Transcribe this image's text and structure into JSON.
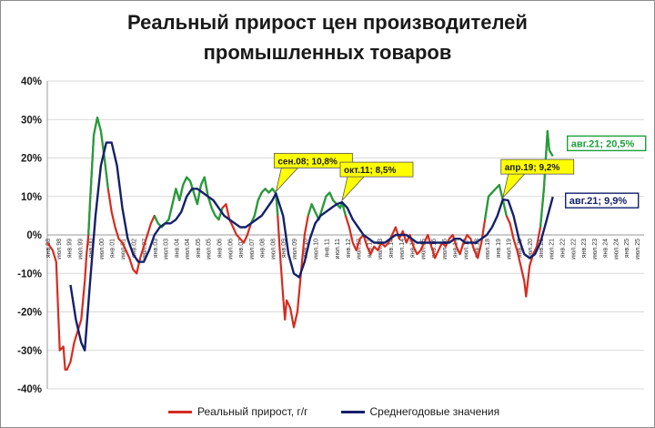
{
  "chart_data": {
    "type": "line",
    "title": "Реальный прирост цен производителей промышленных товаров",
    "title_lines": [
      "Реальный прирост цен производителей",
      "промышленных товаров"
    ],
    "xlabel": "",
    "ylabel": "",
    "ylim": [
      -40,
      40
    ],
    "yticks": [
      -40,
      -30,
      -20,
      -10,
      0,
      10,
      20,
      30,
      40
    ],
    "ytick_labels": [
      "-40%",
      "-30%",
      "-20%",
      "-10%",
      "0%",
      "10%",
      "20%",
      "30%",
      "40%"
    ],
    "grid": true,
    "legend_position": "bottom",
    "x_ticks": [
      "янв.98",
      "июл.98",
      "янв.99",
      "июл.99",
      "янв.00",
      "июл.00",
      "янв.01",
      "июл.01",
      "янв.02",
      "июл.02",
      "янв.03",
      "июл.03",
      "янв.04",
      "июл.04",
      "янв.05",
      "июл.05",
      "янв.06",
      "июл.06",
      "янв.07",
      "июл.07",
      "янв.08",
      "июл.08",
      "янв.09",
      "июл.09",
      "янв.10",
      "июл.10",
      "янв.11",
      "июл.11",
      "янв.12",
      "июл.12",
      "янв.13",
      "июл.13",
      "янв.14",
      "июл.14",
      "янв.15",
      "июл.15",
      "янв.16",
      "июл.16",
      "янв.17",
      "июл.17",
      "янв.18",
      "июл.18",
      "янв.19",
      "июл.19",
      "янв.20",
      "июл.20",
      "янв.21",
      "июл.21",
      "янв.22",
      "июл.22",
      "янв.23",
      "июл.23",
      "янв.24",
      "июл.24",
      "янв.25",
      "июл.25"
    ],
    "x_start": "1998-01",
    "x_end": "2025-07",
    "series": [
      {
        "name": "Реальный прирост, г/г",
        "color": "#d62b1f",
        "points": [
          [
            "1998-01",
            -2
          ],
          [
            "1998-04",
            -4
          ],
          [
            "1998-06",
            -7
          ],
          [
            "1998-08",
            -30
          ],
          [
            "1998-10",
            -29
          ],
          [
            "1998-11",
            -35
          ],
          [
            "1998-12",
            -35
          ],
          [
            "1999-02",
            -33
          ],
          [
            "1999-04",
            -28
          ],
          [
            "1999-06",
            -25
          ],
          [
            "1999-08",
            -22
          ],
          [
            "1999-10",
            -12
          ],
          [
            "1999-11",
            -5
          ],
          [
            "1999-12",
            0
          ],
          [
            "2000-01",
            9
          ],
          [
            "2000-03",
            26
          ],
          [
            "2000-05",
            30.5
          ],
          [
            "2000-07",
            27
          ],
          [
            "2000-09",
            20
          ],
          [
            "2000-11",
            12
          ],
          [
            "2001-01",
            6
          ],
          [
            "2001-03",
            2
          ],
          [
            "2001-05",
            -1
          ],
          [
            "2001-07",
            -2
          ],
          [
            "2001-09",
            -4
          ],
          [
            "2001-11",
            -6
          ],
          [
            "2002-01",
            -9
          ],
          [
            "2002-03",
            -10
          ],
          [
            "2002-05",
            -6
          ],
          [
            "2002-07",
            -3
          ],
          [
            "2002-09",
            0
          ],
          [
            "2002-11",
            3
          ],
          [
            "2003-01",
            5
          ],
          [
            "2003-03",
            3
          ],
          [
            "2003-05",
            2
          ],
          [
            "2003-07",
            3
          ],
          [
            "2003-09",
            4
          ],
          [
            "2003-11",
            8
          ],
          [
            "2004-01",
            12
          ],
          [
            "2004-03",
            9
          ],
          [
            "2004-05",
            13
          ],
          [
            "2004-07",
            15
          ],
          [
            "2004-09",
            14
          ],
          [
            "2004-11",
            11
          ],
          [
            "2005-01",
            8
          ],
          [
            "2005-03",
            13
          ],
          [
            "2005-05",
            15
          ],
          [
            "2005-07",
            10
          ],
          [
            "2005-09",
            7
          ],
          [
            "2005-11",
            5
          ],
          [
            "2006-01",
            4
          ],
          [
            "2006-03",
            7
          ],
          [
            "2006-05",
            8
          ],
          [
            "2006-07",
            4
          ],
          [
            "2006-09",
            2
          ],
          [
            "2006-11",
            0
          ],
          [
            "2007-01",
            -1
          ],
          [
            "2007-03",
            -2
          ],
          [
            "2007-05",
            0
          ],
          [
            "2007-07",
            3
          ],
          [
            "2007-09",
            5
          ],
          [
            "2007-11",
            9
          ],
          [
            "2008-01",
            11
          ],
          [
            "2008-03",
            12
          ],
          [
            "2008-05",
            11
          ],
          [
            "2008-07",
            12
          ],
          [
            "2008-09",
            10.8
          ],
          [
            "2008-10",
            5
          ],
          [
            "2008-11",
            -3
          ],
          [
            "2009-01",
            -16
          ],
          [
            "2009-02",
            -22
          ],
          [
            "2009-03",
            -17
          ],
          [
            "2009-05",
            -19
          ],
          [
            "2009-07",
            -24
          ],
          [
            "2009-09",
            -20
          ],
          [
            "2009-11",
            -10
          ],
          [
            "2010-01",
            0
          ],
          [
            "2010-03",
            5
          ],
          [
            "2010-05",
            8
          ],
          [
            "2010-07",
            6
          ],
          [
            "2010-09",
            4
          ],
          [
            "2010-11",
            7
          ],
          [
            "2011-01",
            10
          ],
          [
            "2011-03",
            11
          ],
          [
            "2011-05",
            9
          ],
          [
            "2011-07",
            8
          ],
          [
            "2011-09",
            7
          ],
          [
            "2011-10",
            8.5
          ],
          [
            "2011-12",
            5
          ],
          [
            "2012-02",
            2
          ],
          [
            "2012-04",
            -2
          ],
          [
            "2012-06",
            -4
          ],
          [
            "2012-08",
            -1
          ],
          [
            "2012-10",
            0
          ],
          [
            "2012-12",
            -3
          ],
          [
            "2013-02",
            -5
          ],
          [
            "2013-04",
            -3
          ],
          [
            "2013-06",
            -4
          ],
          [
            "2013-08",
            -2
          ],
          [
            "2013-10",
            -3
          ],
          [
            "2013-12",
            -2
          ],
          [
            "2014-02",
            0
          ],
          [
            "2014-04",
            2
          ],
          [
            "2014-06",
            -1
          ],
          [
            "2014-08",
            1
          ],
          [
            "2014-10",
            -2
          ],
          [
            "2014-12",
            0
          ],
          [
            "2015-02",
            -3
          ],
          [
            "2015-04",
            -5
          ],
          [
            "2015-06",
            -4
          ],
          [
            "2015-08",
            -2
          ],
          [
            "2015-10",
            0
          ],
          [
            "2015-12",
            -3
          ],
          [
            "2016-02",
            -6
          ],
          [
            "2016-04",
            -4
          ],
          [
            "2016-06",
            -2
          ],
          [
            "2016-08",
            -3
          ],
          [
            "2016-10",
            -1
          ],
          [
            "2016-12",
            0
          ],
          [
            "2017-02",
            -3
          ],
          [
            "2017-04",
            -5
          ],
          [
            "2017-06",
            -2
          ],
          [
            "2017-08",
            0
          ],
          [
            "2017-10",
            -1
          ],
          [
            "2017-12",
            -4
          ],
          [
            "2018-02",
            -6
          ],
          [
            "2018-04",
            -2
          ],
          [
            "2018-06",
            4
          ],
          [
            "2018-08",
            10
          ],
          [
            "2018-10",
            11
          ],
          [
            "2018-12",
            12
          ],
          [
            "2019-02",
            13
          ],
          [
            "2019-04",
            9.2
          ],
          [
            "2019-06",
            5
          ],
          [
            "2019-08",
            3
          ],
          [
            "2019-10",
            -1
          ],
          [
            "2019-12",
            -4
          ],
          [
            "2020-02",
            -8
          ],
          [
            "2020-04",
            -12
          ],
          [
            "2020-05",
            -16
          ],
          [
            "2020-07",
            -8
          ],
          [
            "2020-09",
            -5
          ],
          [
            "2020-11",
            -3
          ],
          [
            "2021-01",
            2
          ],
          [
            "2021-03",
            12
          ],
          [
            "2021-05",
            27
          ],
          [
            "2021-06",
            22
          ],
          [
            "2021-08",
            20.5
          ]
        ],
        "segments_green_ranges": [
          [
            "1999-12",
            "2000-12"
          ],
          [
            "2003-01",
            "2006-03"
          ],
          [
            "2007-07",
            "2008-10"
          ],
          [
            "2010-03",
            "2011-12"
          ],
          [
            "2018-06",
            "2019-06"
          ],
          [
            "2021-01",
            "2021-08"
          ]
        ]
      },
      {
        "name": "Среднегодовые значения",
        "color": "#14206b",
        "points": [
          [
            "1999-02",
            -13
          ],
          [
            "1999-05",
            -22
          ],
          [
            "1999-08",
            -28
          ],
          [
            "1999-10",
            -30
          ],
          [
            "2000-01",
            -12
          ],
          [
            "2000-04",
            5
          ],
          [
            "2000-07",
            18
          ],
          [
            "2000-10",
            24
          ],
          [
            "2001-01",
            24
          ],
          [
            "2001-04",
            18
          ],
          [
            "2001-07",
            7
          ],
          [
            "2001-10",
            -1
          ],
          [
            "2002-01",
            -5
          ],
          [
            "2002-04",
            -7
          ],
          [
            "2002-07",
            -7
          ],
          [
            "2002-10",
            -4
          ],
          [
            "2003-01",
            0
          ],
          [
            "2003-04",
            2
          ],
          [
            "2003-07",
            3
          ],
          [
            "2003-10",
            3
          ],
          [
            "2004-01",
            4
          ],
          [
            "2004-04",
            6
          ],
          [
            "2004-07",
            10
          ],
          [
            "2004-10",
            12
          ],
          [
            "2005-01",
            12
          ],
          [
            "2005-04",
            11
          ],
          [
            "2005-07",
            10
          ],
          [
            "2005-10",
            9
          ],
          [
            "2006-01",
            7
          ],
          [
            "2006-04",
            5
          ],
          [
            "2006-07",
            4
          ],
          [
            "2006-10",
            3
          ],
          [
            "2007-01",
            2
          ],
          [
            "2007-04",
            2
          ],
          [
            "2007-07",
            3
          ],
          [
            "2007-10",
            4
          ],
          [
            "2008-01",
            5
          ],
          [
            "2008-04",
            7
          ],
          [
            "2008-07",
            9
          ],
          [
            "2008-09",
            10.8
          ],
          [
            "2009-01",
            5
          ],
          [
            "2009-04",
            -5
          ],
          [
            "2009-07",
            -10
          ],
          [
            "2009-10",
            -11
          ],
          [
            "2010-01",
            -7
          ],
          [
            "2010-04",
            -1
          ],
          [
            "2010-07",
            3
          ],
          [
            "2010-10",
            5
          ],
          [
            "2011-01",
            6
          ],
          [
            "2011-04",
            7
          ],
          [
            "2011-07",
            8
          ],
          [
            "2011-10",
            8.5
          ],
          [
            "2012-01",
            7
          ],
          [
            "2012-04",
            4
          ],
          [
            "2012-07",
            2
          ],
          [
            "2012-10",
            0
          ],
          [
            "2013-01",
            -1
          ],
          [
            "2013-04",
            -2
          ],
          [
            "2013-07",
            -2
          ],
          [
            "2013-10",
            -2
          ],
          [
            "2014-01",
            -1
          ],
          [
            "2014-04",
            0
          ],
          [
            "2014-07",
            0
          ],
          [
            "2014-10",
            0
          ],
          [
            "2015-01",
            -1
          ],
          [
            "2015-04",
            -2
          ],
          [
            "2015-07",
            -2
          ],
          [
            "2015-10",
            -2
          ],
          [
            "2016-01",
            -2
          ],
          [
            "2016-04",
            -2
          ],
          [
            "2016-07",
            -2
          ],
          [
            "2016-10",
            -2
          ],
          [
            "2017-01",
            -1
          ],
          [
            "2017-04",
            -1
          ],
          [
            "2017-07",
            -2
          ],
          [
            "2017-10",
            -2
          ],
          [
            "2018-01",
            -2
          ],
          [
            "2018-04",
            -1
          ],
          [
            "2018-07",
            0
          ],
          [
            "2018-10",
            2
          ],
          [
            "2019-01",
            5
          ],
          [
            "2019-04",
            9.2
          ],
          [
            "2019-07",
            9
          ],
          [
            "2019-10",
            5
          ],
          [
            "2020-01",
            -1
          ],
          [
            "2020-04",
            -5
          ],
          [
            "2020-07",
            -6
          ],
          [
            "2020-10",
            -5
          ],
          [
            "2021-01",
            -2
          ],
          [
            "2021-04",
            3
          ],
          [
            "2021-08",
            9.9
          ]
        ]
      }
    ],
    "annotations": [
      {
        "text": "сен.08; 10,8%",
        "x": "2008-09",
        "y": 10.8,
        "style": "yellow-callout",
        "anchor": "above",
        "series": "Среднегодовые значения"
      },
      {
        "text": "окт.11; 8,5%",
        "x": "2011-10",
        "y": 8.5,
        "style": "yellow-callout",
        "anchor": "above",
        "series": "Среднегодовые значения"
      },
      {
        "text": "апр.19; 9,2%",
        "x": "2019-04",
        "y": 9.2,
        "style": "yellow-callout",
        "anchor": "above",
        "series": "Среднегодовые значения"
      },
      {
        "text": "авг.21; 20,5%",
        "x": "2021-08",
        "y": 20.5,
        "style": "green-box",
        "series": "Реальный прирост, г/г"
      },
      {
        "text": "авг.21; 9,9%",
        "x": "2021-08",
        "y": 9.9,
        "style": "blue-box",
        "series": "Среднегодовые значения"
      }
    ]
  },
  "legend": [
    {
      "label": "Реальный прирост, г/г",
      "color": "#d62b1f"
    },
    {
      "label": "Среднегодовые значения",
      "color": "#14206b"
    }
  ],
  "colors": {
    "green_segment": "#1ea03c",
    "grid": "#d9d9d9",
    "callout_fill": "#ffff00"
  }
}
